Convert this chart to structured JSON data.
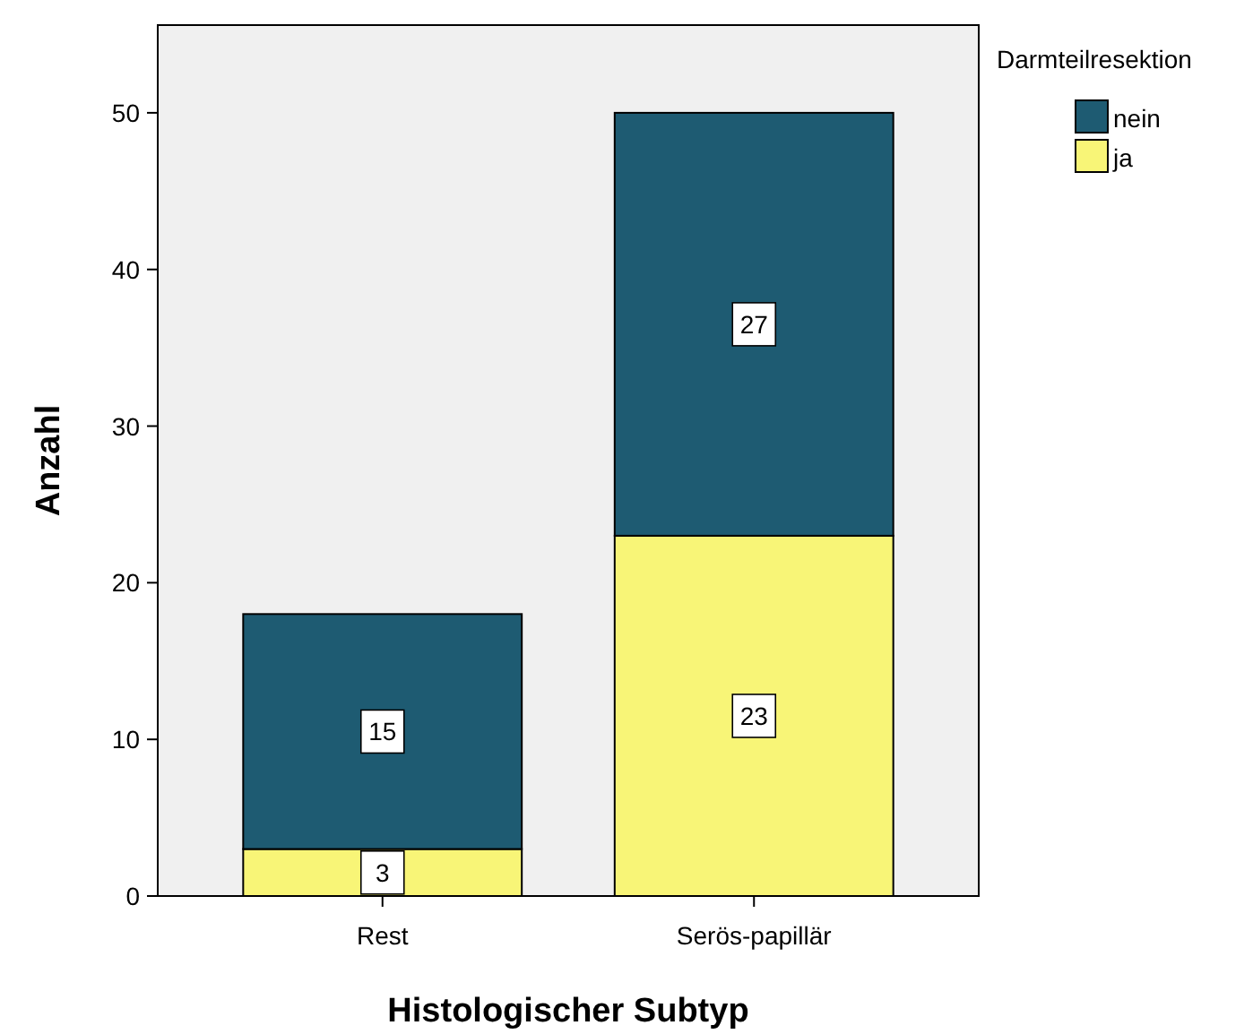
{
  "chart_data": {
    "type": "bar",
    "stacked": true,
    "xlabel": "Histologischer Subtyp",
    "ylabel": "Anzahl",
    "legend_title": "Darmteilresektion",
    "legend": "right",
    "categories": [
      "Rest",
      "Serös-papillär"
    ],
    "series": [
      {
        "name": "ja",
        "color": "#f8f577",
        "values": [
          3,
          23
        ]
      },
      {
        "name": "nein",
        "color": "#1e5b72",
        "values": [
          15,
          27
        ]
      }
    ],
    "ylim": [
      0,
      55.6
    ],
    "yticks": [
      0,
      10,
      20,
      30,
      40,
      50
    ],
    "grid": false,
    "data_labels": true
  }
}
